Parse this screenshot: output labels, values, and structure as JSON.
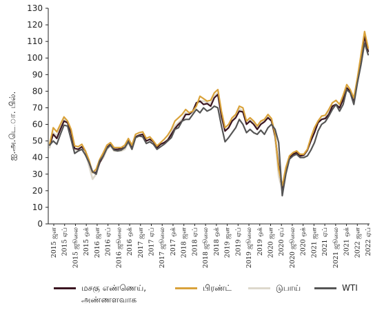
{
  "chart_data": {
    "type": "line",
    "ylabel": "ஐ.அ.டெ.ா. பில்.",
    "ylim": [
      0,
      130
    ],
    "yticks": [
      0,
      10,
      20,
      30,
      40,
      50,
      60,
      70,
      80,
      90,
      100,
      110,
      120,
      130
    ],
    "x_tick_labels": [
      "2015 ஜன",
      "2015 ஏப்",
      "2015 ஜூலை",
      "2015 ஒக்",
      "2016 ஜன",
      "2016 ஏப்",
      "2016 ஜூலை",
      "2016 ஒக்",
      "2017 ஜன",
      "2017 ஏப்",
      "2017 ஜூலை",
      "2017 ஒக்",
      "2018 ஜன",
      "2018 ஏப்",
      "2018 ஜூலை",
      "2018 ஒக்",
      "2019 ஜன",
      "2019 ஏப்",
      "2019 ஜூலை",
      "2019 ஒக்",
      "2020 ஜன",
      "2020 ஏப்",
      "2020 ஜூலை",
      "2020 ஒக்",
      "2021 ஜன",
      "2021 ஏப்",
      "2021 ஜூலை",
      "2021 ஒக்",
      "2022 ஜன",
      "2022 ஏப்"
    ],
    "series": [
      {
        "name": "மசகு எண்ணெய், அண்ணளவாக",
        "color": "#3a1420",
        "values": [
          47.5,
          54,
          51.5,
          57,
          62,
          61,
          55,
          45.5,
          45,
          46.5,
          44,
          37,
          31,
          31,
          37,
          41,
          46,
          48,
          45,
          45,
          45.5,
          46,
          50,
          45.5,
          52.5,
          53.5,
          54,
          50,
          51,
          49.5,
          46,
          48,
          49,
          50.5,
          54,
          57.5,
          60,
          62,
          66,
          66,
          68,
          73,
          74,
          72,
          72.5,
          71,
          76,
          78,
          65,
          56,
          58,
          62,
          64,
          68,
          67.5,
          60,
          62,
          60,
          57,
          60,
          61.5,
          64,
          62,
          53,
          35,
          21,
          31,
          40,
          42,
          43,
          41,
          41.5,
          44.5,
          50,
          55,
          61,
          63,
          63.5,
          66,
          71,
          72,
          70,
          75,
          82,
          80,
          73,
          86,
          100,
          113,
          104
        ]
      },
      {
        "name": "பிரண்ட்",
        "color": "#d9a23a",
        "values": [
          48,
          58,
          55.5,
          60,
          64.5,
          62,
          57,
          47,
          46.5,
          48,
          44,
          38.5,
          31,
          33,
          39,
          43,
          47.5,
          49,
          46,
          46,
          46,
          47.5,
          51.5,
          47.5,
          54,
          55,
          55.5,
          51.5,
          52.5,
          50,
          47,
          49,
          51,
          53.5,
          57,
          62,
          64,
          66,
          69,
          67,
          68,
          71,
          77,
          75.5,
          74,
          74.5,
          79,
          81,
          68,
          58,
          60,
          64,
          66,
          71,
          70,
          62,
          64,
          62,
          59,
          62,
          63,
          66,
          63.5,
          54,
          33,
          23,
          34,
          41,
          43,
          44,
          42,
          42,
          45,
          52,
          58,
          62,
          65,
          65.5,
          69,
          73,
          74.5,
          72,
          77.5,
          84,
          81,
          76,
          88,
          102,
          116,
          106
        ]
      },
      {
        "name": "டுபாய்",
        "color": "#ddd8cc",
        "values": [
          46,
          55,
          53,
          59,
          63,
          61,
          56,
          45,
          44,
          45,
          43,
          35,
          27,
          30,
          37,
          40,
          45,
          47,
          44,
          44,
          44,
          45,
          49,
          45,
          52,
          53,
          53.5,
          50,
          51,
          48,
          46,
          48,
          49,
          51,
          55,
          59,
          61,
          63,
          67,
          66,
          67.5,
          72,
          74,
          74,
          73,
          72.5,
          77,
          79,
          65,
          56,
          58,
          62,
          65,
          69.5,
          68,
          61,
          62.5,
          61,
          58,
          61,
          62,
          65,
          62,
          52,
          29,
          20,
          33,
          40,
          42,
          43,
          41,
          41,
          44,
          51,
          57,
          61,
          63,
          64,
          67,
          71,
          72,
          70,
          76,
          82,
          80,
          74,
          87,
          98,
          112,
          104
        ]
      },
      {
        "name": "WTI",
        "color": "#555555",
        "values": [
          47.5,
          50,
          48,
          54,
          59.5,
          59,
          51,
          42.5,
          44,
          45,
          41.5,
          37,
          31.5,
          30,
          38,
          41,
          45.5,
          47.5,
          44.5,
          44,
          44.5,
          46,
          49.5,
          45,
          52,
          53,
          52.5,
          48.5,
          49.5,
          48,
          45,
          46.5,
          48,
          50,
          52,
          57,
          58,
          62,
          63,
          63,
          66,
          69,
          67,
          70,
          68,
          69,
          71,
          70,
          59,
          49.5,
          52,
          55,
          58,
          63,
          60,
          55,
          57,
          55,
          54,
          56.5,
          54,
          58,
          60,
          57,
          49,
          17,
          30,
          39,
          41,
          42,
          40,
          40,
          41,
          44.5,
          49,
          56,
          60,
          61.5,
          65,
          69,
          72,
          68,
          72,
          81,
          79,
          72,
          85,
          96,
          109,
          102
        ]
      }
    ]
  },
  "legend": {
    "item1_line1": "மசகு எண்ணெய்,",
    "item1_line2": "அண்ணளவாக",
    "item2": "பிரண்ட்",
    "item3": "டுபாய்",
    "item4": "WTI"
  }
}
